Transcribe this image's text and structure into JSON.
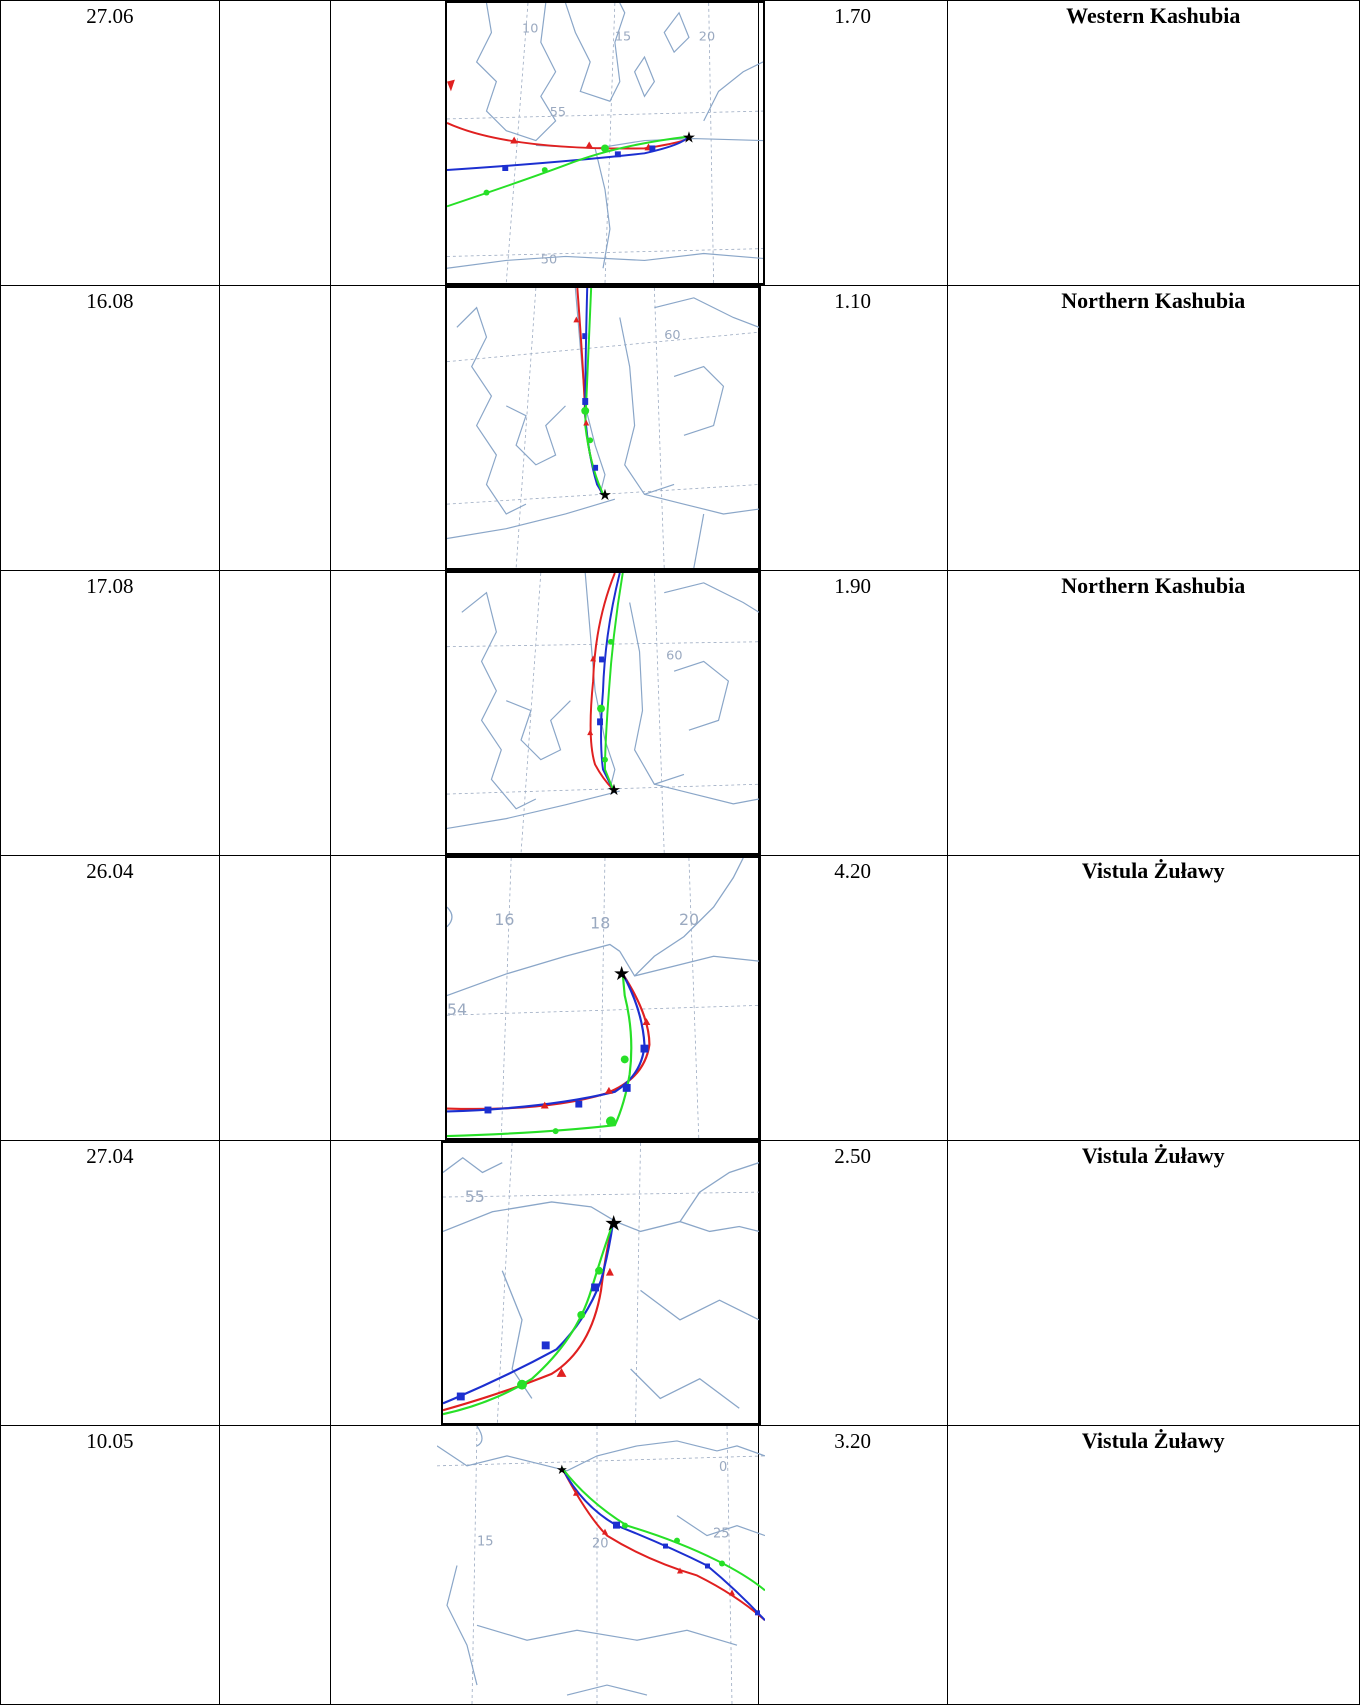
{
  "rows": [
    {
      "date": "27.06",
      "value": "1.70",
      "region": "Western Kashubia",
      "map_labels": [
        "10",
        "15",
        "20",
        "55",
        "50"
      ]
    },
    {
      "date": "16.08",
      "value": "1.10",
      "region": "Northern Kashubia",
      "map_labels": [
        "60"
      ]
    },
    {
      "date": "17.08",
      "value": "1.90",
      "region": "Northern Kashubia",
      "map_labels": [
        "60"
      ]
    },
    {
      "date": "26.04",
      "value": "4.20",
      "region": "Vistula Żuławy",
      "map_labels": [
        "16",
        "18",
        "20",
        "54"
      ]
    },
    {
      "date": "27.04",
      "value": "2.50",
      "region": "Vistula Żuławy",
      "map_labels": [
        "55"
      ]
    },
    {
      "date": "10.05",
      "value": "3.20",
      "region": "Vistula Żuławy",
      "map_labels": [
        "15",
        "20",
        "25",
        "0"
      ]
    }
  ],
  "colors": {
    "red": "#e02020",
    "blue": "#1c2fd0",
    "green": "#27e027",
    "coast": "#8aa6c8",
    "grid": "#9aa9c0",
    "star": "#000000"
  }
}
